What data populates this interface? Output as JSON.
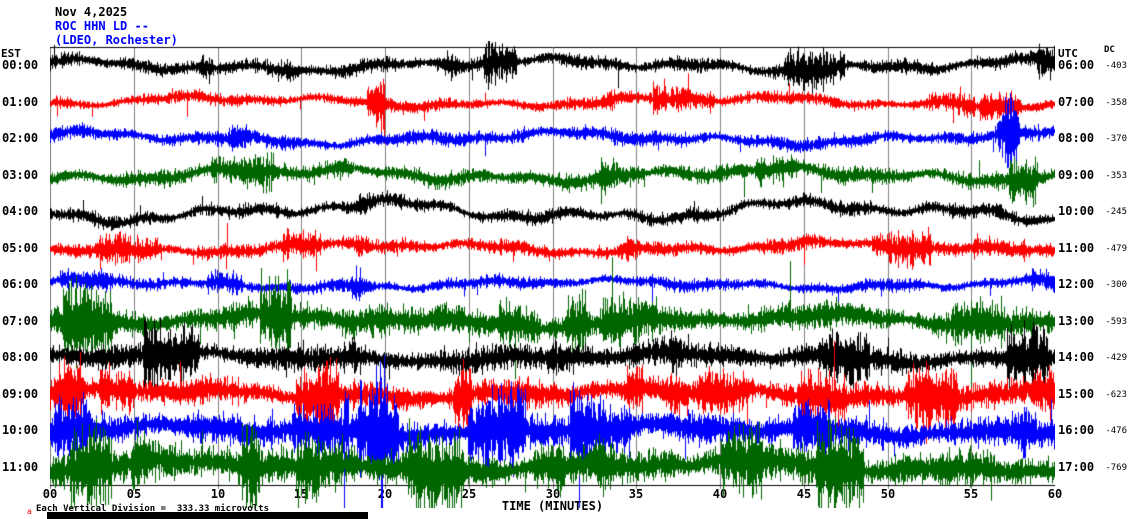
{
  "header": {
    "date": "Nov 4,2025",
    "station": "ROC HHN LD --",
    "location": "(LDEO, Rochester)"
  },
  "left_axis": {
    "label": "EST"
  },
  "right_axis": {
    "label": "UTC",
    "dc_label": "DC"
  },
  "x_axis": {
    "label": "TIME (MINUTES)",
    "ticks": [
      "00",
      "05",
      "10",
      "15",
      "20",
      "25",
      "30",
      "35",
      "40",
      "45",
      "50",
      "55",
      "60"
    ]
  },
  "footer": {
    "marker": "a",
    "scale_note": "Each Vertical Division =  333.33 microvolts"
  },
  "colors": {
    "trace_black": "#000000",
    "trace_red": "#ff0000",
    "trace_blue": "#0000ff",
    "trace_green": "#006600",
    "header_accent": "#0000ff",
    "gridline": "#808080",
    "background": "#ffffff"
  },
  "chart_data": {
    "type": "line",
    "title": "ROC HHN LD helicorder - 12 hourly seismic traces, 60 minutes per row",
    "x_axis_minutes": [
      0,
      60
    ],
    "gridline_interval_minutes": 5,
    "vertical_division_microvolts": 333.33,
    "rows": [
      {
        "est": "00:00",
        "utc": "06:00",
        "dc": -403,
        "color": "#000000",
        "amp": 7,
        "wander": 8,
        "burst_prob": 0.004,
        "events": [
          {
            "pos": 0.155,
            "mag": 2.8
          },
          {
            "pos": 0.235,
            "mag": 2.0
          },
          {
            "pos": 0.395,
            "mag": 2.2
          }
        ]
      },
      {
        "est": "01:00",
        "utc": "07:00",
        "dc": -358,
        "color": "#ff0000",
        "amp": 6,
        "wander": 7,
        "burst_prob": 0.003,
        "events": [
          {
            "pos": 0.33,
            "mag": 1.8
          },
          {
            "pos": 0.56,
            "mag": 1.6
          }
        ]
      },
      {
        "est": "02:00",
        "utc": "08:00",
        "dc": -370,
        "color": "#0000ff",
        "amp": 7,
        "wander": 8,
        "burst_prob": 0.004,
        "events": [
          {
            "pos": 0.47,
            "mag": 1.8
          },
          {
            "pos": 0.955,
            "mag": 3.4
          }
        ]
      },
      {
        "est": "03:00",
        "utc": "09:00",
        "dc": -353,
        "color": "#006600",
        "amp": 8,
        "wander": 9,
        "burst_prob": 0.004,
        "events": [
          {
            "pos": 0.29,
            "mag": 2.0
          },
          {
            "pos": 0.55,
            "mag": 1.7
          }
        ]
      },
      {
        "est": "04:00",
        "utc": "10:00",
        "dc": -245,
        "color": "#000000",
        "amp": 7,
        "wander": 13,
        "burst_prob": 0.003,
        "events": [
          {
            "pos": 0.31,
            "mag": 1.9
          }
        ]
      },
      {
        "est": "05:00",
        "utc": "11:00",
        "dc": -479,
        "color": "#ff0000",
        "amp": 7,
        "wander": 7,
        "burst_prob": 0.004,
        "events": [
          {
            "pos": 0.31,
            "mag": 1.7
          },
          {
            "pos": 0.575,
            "mag": 2.3
          }
        ]
      },
      {
        "est": "06:00",
        "utc": "12:00",
        "dc": -300,
        "color": "#0000ff",
        "amp": 6,
        "wander": 6,
        "burst_prob": 0.003,
        "events": [
          {
            "pos": 0.307,
            "mag": 3.8
          }
        ]
      },
      {
        "est": "07:00",
        "utc": "13:00",
        "dc": -593,
        "color": "#006600",
        "amp": 13,
        "wander": 8,
        "burst_prob": 0.006,
        "events": [
          {
            "pos": 0.6,
            "mag": 1.7
          }
        ]
      },
      {
        "est": "08:00",
        "utc": "14:00",
        "dc": -429,
        "color": "#000000",
        "amp": 12,
        "wander": 6,
        "burst_prob": 0.006,
        "events": [
          {
            "pos": 0.3,
            "mag": 1.6
          },
          {
            "pos": 0.62,
            "mag": 1.7
          }
        ]
      },
      {
        "est": "09:00",
        "utc": "15:00",
        "dc": -623,
        "color": "#ff0000",
        "amp": 13,
        "wander": 7,
        "burst_prob": 0.007,
        "events": [
          {
            "pos": 0.62,
            "mag": 1.9
          },
          {
            "pos": 0.87,
            "mag": 1.8
          }
        ]
      },
      {
        "est": "10:00",
        "utc": "16:00",
        "dc": -476,
        "color": "#0000ff",
        "amp": 15,
        "wander": 7,
        "burst_prob": 0.007,
        "events": [
          {
            "pos": 0.33,
            "mag": 1.8
          },
          {
            "pos": 0.72,
            "mag": 1.9
          },
          {
            "pos": 0.97,
            "mag": 2.1
          }
        ]
      },
      {
        "est": "11:00",
        "utc": "17:00",
        "dc": -769,
        "color": "#006600",
        "amp": 17,
        "wander": 8,
        "burst_prob": 0.007,
        "events": [
          {
            "pos": 0.3,
            "mag": 1.8
          },
          {
            "pos": 0.55,
            "mag": 1.9
          }
        ]
      }
    ]
  }
}
